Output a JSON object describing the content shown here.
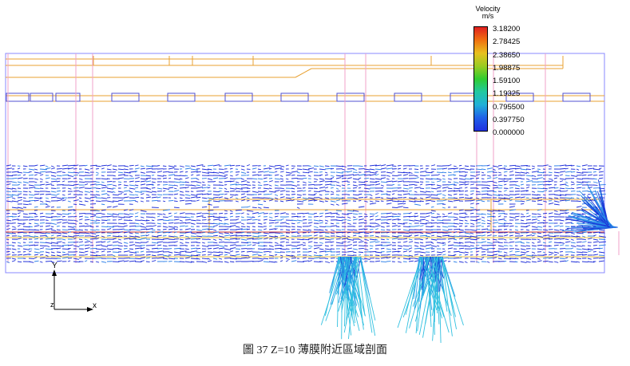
{
  "legend": {
    "title": "Velocity",
    "unit": "m/s",
    "values": [
      "3.18200",
      "2.78425",
      "2.38650",
      "1.98875",
      "1.59100",
      "1.19325",
      "0.795500",
      "0.397750",
      "0.000000"
    ],
    "colors": [
      "#e02020",
      "#f07010",
      "#e8c020",
      "#9ccc20",
      "#30cc30",
      "#20c8a0",
      "#20b0d8",
      "#2060e8",
      "#2030e0"
    ]
  },
  "axes": {
    "y_label": "Y",
    "x_label": "x",
    "z_label": "z"
  },
  "caption": "圖 37 Z=10 薄膜附近區域剖面"
}
